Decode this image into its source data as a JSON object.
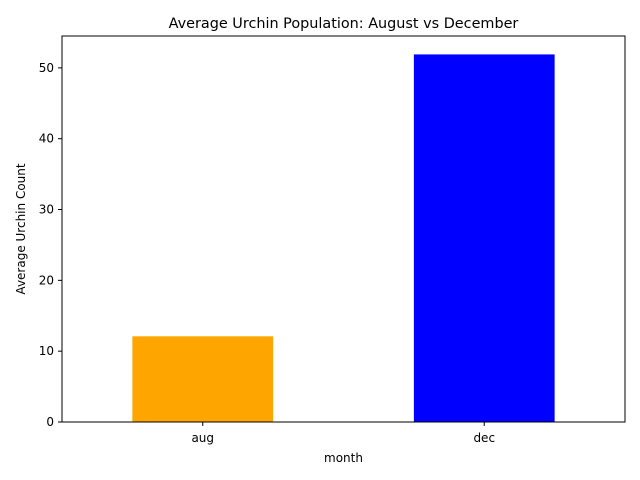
{
  "chart_data": {
    "type": "bar",
    "title": "Average Urchin Population: August vs December",
    "xlabel": "month",
    "ylabel": "Average Urchin Count",
    "categories": [
      "aug",
      "dec"
    ],
    "values": [
      12.1,
      51.9
    ],
    "bar_colors": [
      "#ffa500",
      "#0000ff"
    ],
    "ylim": [
      0,
      54.5
    ],
    "yticks": [
      0,
      10,
      20,
      30,
      40,
      50
    ],
    "grid": false,
    "legend": "none"
  }
}
